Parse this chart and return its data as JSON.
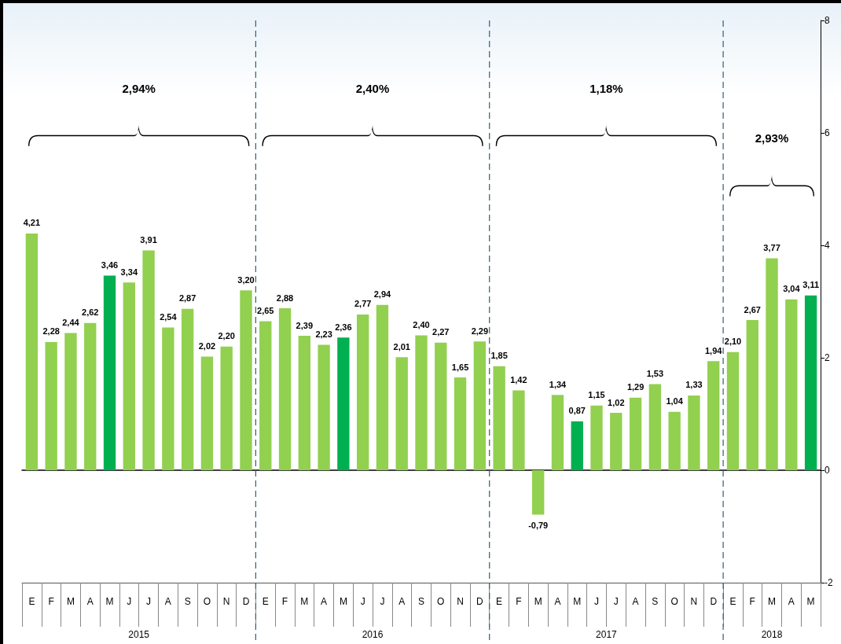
{
  "chart_data": {
    "type": "bar",
    "categories": [
      "E",
      "F",
      "M",
      "A",
      "M",
      "J",
      "J",
      "A",
      "S",
      "O",
      "N",
      "D",
      "E",
      "F",
      "M",
      "A",
      "M",
      "J",
      "J",
      "A",
      "S",
      "O",
      "N",
      "D",
      "E",
      "F",
      "M",
      "A",
      "M",
      "J",
      "J",
      "A",
      "S",
      "O",
      "N",
      "D",
      "E",
      "F",
      "M",
      "A",
      "M"
    ],
    "values": [
      4.21,
      2.28,
      2.44,
      2.62,
      3.46,
      3.34,
      3.91,
      2.54,
      2.87,
      2.02,
      2.2,
      3.2,
      2.65,
      2.88,
      2.39,
      2.23,
      2.36,
      2.77,
      2.94,
      2.01,
      2.4,
      2.27,
      1.65,
      2.29,
      1.85,
      1.42,
      -0.79,
      1.34,
      0.87,
      1.15,
      1.02,
      1.29,
      1.53,
      1.04,
      1.33,
      1.94,
      2.1,
      2.67,
      3.77,
      3.04,
      3.11
    ],
    "value_labels": [
      "4,21",
      "2,28",
      "2,44",
      "2,62",
      "3,46",
      "3,34",
      "3,91",
      "2,54",
      "2,87",
      "2,02",
      "2,20",
      "3,20",
      "2,65",
      "2,88",
      "2,39",
      "2,23",
      "2,36",
      "2,77",
      "2,94",
      "2,01",
      "2,40",
      "2,27",
      "1,65",
      "2,29",
      "1,85",
      "1,42",
      "-0,79",
      "1,34",
      "0,87",
      "1,15",
      "1,02",
      "1,29",
      "1,53",
      "1,04",
      "1,33",
      "1,94",
      "2,10",
      "2,67",
      "3,77",
      "3,04",
      "3,11"
    ],
    "colors": [
      "#92d050",
      "#92d050",
      "#92d050",
      "#92d050",
      "#00b050",
      "#92d050",
      "#92d050",
      "#92d050",
      "#92d050",
      "#92d050",
      "#92d050",
      "#92d050",
      "#92d050",
      "#92d050",
      "#92d050",
      "#92d050",
      "#00b050",
      "#92d050",
      "#92d050",
      "#92d050",
      "#92d050",
      "#92d050",
      "#92d050",
      "#92d050",
      "#92d050",
      "#92d050",
      "#92d050",
      "#92d050",
      "#00b050",
      "#92d050",
      "#92d050",
      "#92d050",
      "#92d050",
      "#92d050",
      "#92d050",
      "#92d050",
      "#92d050",
      "#92d050",
      "#92d050",
      "#92d050",
      "#00b050"
    ],
    "ylim": [
      -2,
      8
    ],
    "yticks": [
      -2,
      0,
      2,
      4,
      6,
      8
    ],
    "annotations": [
      "2,94%",
      "2,40%",
      "1,18%",
      "2,93%",
      "2015",
      "2016",
      "2017",
      "2018"
    ]
  }
}
